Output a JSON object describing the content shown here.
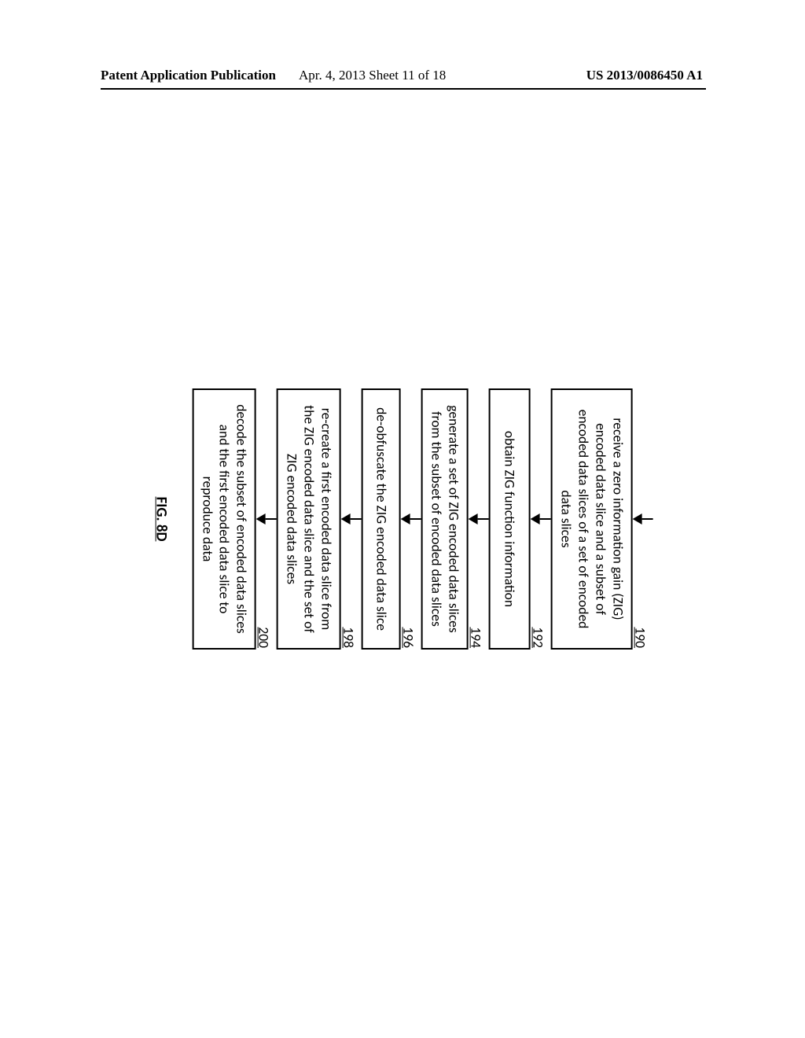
{
  "header": {
    "left": "Patent Application Publication",
    "center": "Apr. 4, 2013  Sheet 11 of 18",
    "right": "US 2013/0086450 A1"
  },
  "steps": [
    {
      "num": "190",
      "text": "receive a zero information gain (ZIG) encoded data slice and a subset of encoded data slices of a set of encoded data slices"
    },
    {
      "num": "192",
      "text": "obtain ZIG function information"
    },
    {
      "num": "194",
      "text": "generate a set of ZIG encoded data slices from the subset of encoded data slices"
    },
    {
      "num": "196",
      "text": "de-obfuscate the ZIG encoded data slice"
    },
    {
      "num": "198",
      "text": "re-create a first encoded data slice from the ZIG encoded data slice and the set of ZIG encoded data slices"
    },
    {
      "num": "200",
      "text": "decode the subset of encoded data slices and the first encoded data slice to reproduce data"
    }
  ],
  "figure_label": "FIG. 8D"
}
